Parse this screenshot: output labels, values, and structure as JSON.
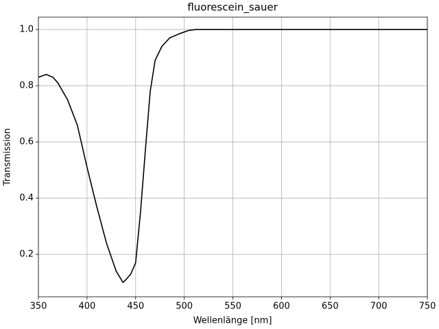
{
  "chart_data": {
    "type": "line",
    "title": "fluorescein_sauer",
    "xlabel": "Wellenlänge [nm]",
    "ylabel": "Transmission",
    "x": [
      350,
      358,
      365,
      370,
      380,
      390,
      400,
      410,
      420,
      430,
      437,
      440,
      445,
      450,
      455,
      460,
      465,
      470,
      477,
      485,
      495,
      505,
      512,
      750
    ],
    "series": [
      {
        "color": "#000000",
        "values": [
          0.83,
          0.84,
          0.83,
          0.81,
          0.75,
          0.66,
          0.51,
          0.37,
          0.24,
          0.14,
          0.1,
          0.11,
          0.13,
          0.17,
          0.35,
          0.57,
          0.78,
          0.89,
          0.94,
          0.97,
          0.985,
          0.997,
          1.0,
          1.0
        ]
      }
    ],
    "xlim": [
      350,
      750
    ],
    "xticks": [
      350,
      400,
      450,
      500,
      550,
      600,
      650,
      700,
      750
    ],
    "ylim": [
      0.049,
      1.044
    ],
    "yticks": [
      0.2,
      0.4,
      0.6,
      0.8,
      {
        "value": 1,
        "label": "1.0"
      }
    ],
    "grid": true
  }
}
